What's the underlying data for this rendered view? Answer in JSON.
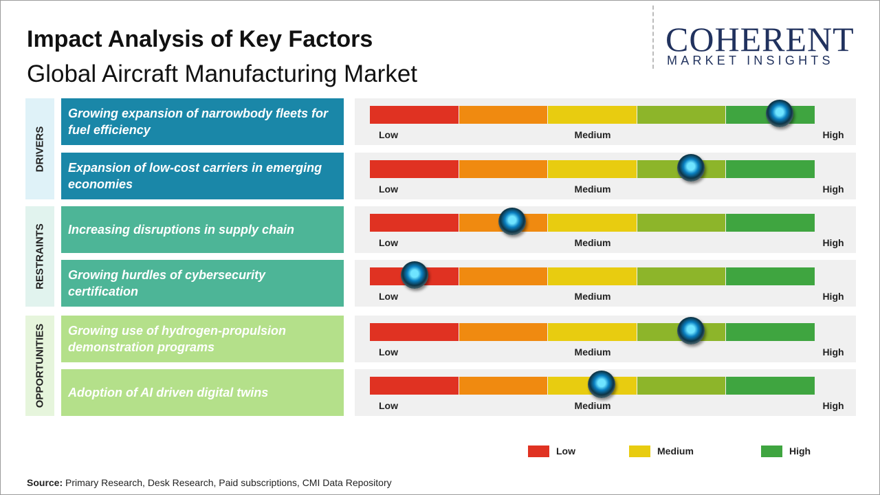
{
  "header": {
    "title": "Impact Analysis of Key Factors",
    "subtitle": "Global Aircraft Manufacturing Market"
  },
  "logo": {
    "name": "COHERENT",
    "tagline": "MARKET INSIGHTS"
  },
  "impact_range": [
    0,
    5
  ],
  "scale": {
    "labels": [
      "Low",
      "Medium",
      "High"
    ],
    "colors": [
      "#e03222",
      "#f08a10",
      "#e8cc10",
      "#8db52a",
      "#3fa540"
    ]
  },
  "groups": [
    {
      "label": "DRIVERS",
      "color": "#1a87a8",
      "tint": "#dff2f8",
      "factors": [
        {
          "text": "Growing expansion of narrowbody fleets for fuel efficiency",
          "value": 4.6
        },
        {
          "text": "Expansion of low-cost carriers in emerging economies",
          "value": 3.6
        }
      ]
    },
    {
      "label": "RESTRAINTS",
      "color": "#4db597",
      "tint": "#e1f3ee",
      "factors": [
        {
          "text": "Increasing disruptions in supply chain",
          "value": 1.6
        },
        {
          "text": "Growing hurdles of cybersecurity certification",
          "value": 0.5
        }
      ]
    },
    {
      "label": "OPPORTUNITIES",
      "color": "#b4e08a",
      "tint": "#e6f5dc",
      "factors": [
        {
          "text": "Growing use of hydrogen-propulsion demonstration programs",
          "value": 3.6
        },
        {
          "text": "Adoption of AI driven digital twins",
          "value": 2.6
        }
      ]
    }
  ],
  "legend": [
    {
      "label": "Low",
      "color": "#e03222"
    },
    {
      "label": "Medium",
      "color": "#e8cc10"
    },
    {
      "label": "High",
      "color": "#3fa540"
    }
  ],
  "source": {
    "prefix": "Source:",
    "text": "Primary Research, Desk Research, Paid subscriptions, CMI Data Repository"
  }
}
